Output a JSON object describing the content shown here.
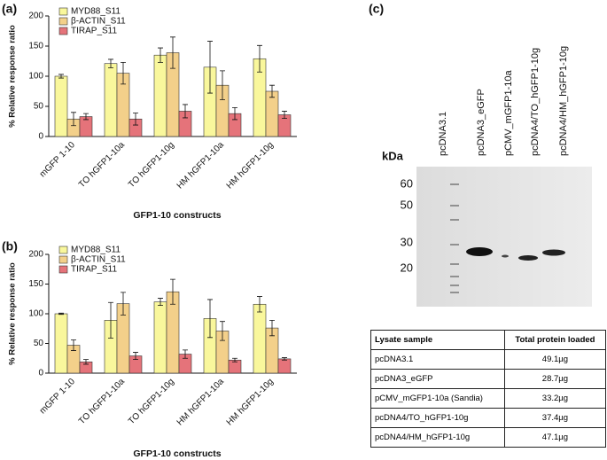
{
  "chart_data": [
    {
      "type": "bar",
      "label": "(a)",
      "ylabel": "% Relative response ratio",
      "xlabel": "GFP1-10 constructs",
      "categories": [
        "mGFP 1-10",
        "TO hGFP1-10a",
        "TO hGFP1-10g",
        "HM hGFP1-10a",
        "HM hGFP1-10g"
      ],
      "series": [
        {
          "name": "MYD88_S11",
          "color": "#f9f79c",
          "values": [
            100,
            121,
            135,
            115,
            129
          ],
          "errors": [
            3,
            7,
            12,
            43,
            22
          ]
        },
        {
          "name": "β-ACTIN_S11",
          "color": "#f3d08a",
          "values": [
            29,
            105,
            139,
            85,
            75
          ],
          "errors": [
            11,
            18,
            26,
            24,
            10
          ]
        },
        {
          "name": "TIRAP_S11",
          "color": "#e5737a",
          "values": [
            33,
            29,
            42,
            38,
            36
          ],
          "errors": [
            5,
            10,
            11,
            10,
            6
          ]
        }
      ],
      "ylim": [
        0,
        200
      ],
      "yticks": [
        0,
        50,
        100,
        150,
        200
      ],
      "legend": "upper left"
    },
    {
      "type": "bar",
      "label": "(b)",
      "ylabel": "% Relative response ratio",
      "xlabel": "GFP1-10 constructs",
      "categories": [
        "mGFP 1-10",
        "TO hGFP1-10a",
        "TO hGFP1-10g",
        "HM hGFP1-10a",
        "HM hGFP1-10g"
      ],
      "series": [
        {
          "name": "MYD88_S11",
          "color": "#f9f79c",
          "values": [
            100,
            89,
            120,
            92,
            116
          ],
          "errors": [
            1,
            30,
            6,
            32,
            13
          ]
        },
        {
          "name": "β-ACTIN_S11",
          "color": "#f3d08a",
          "values": [
            47,
            117,
            137,
            71,
            76
          ],
          "errors": [
            9,
            19,
            21,
            16,
            13
          ]
        },
        {
          "name": "TIRAP_S11",
          "color": "#e5737a",
          "values": [
            19,
            29,
            32,
            22,
            24
          ],
          "errors": [
            4,
            6,
            7,
            3,
            2
          ]
        }
      ],
      "ylim": [
        0,
        200
      ],
      "yticks": [
        0,
        50,
        100,
        150,
        200
      ],
      "legend": "upper left"
    }
  ],
  "blot": {
    "label": "(c)",
    "unit": "kDa",
    "lanes": [
      "pcDNA3.1",
      "pcDNA3_eGFP",
      "pCMV_mGFP1-10a",
      "pcDNA4/TO_hGFP1-10g",
      "pcDNA4/HM_hGFP1-10g"
    ],
    "markers": [
      "60",
      "50",
      "30",
      "20"
    ]
  },
  "table": {
    "header": [
      "Lysate sample",
      "Total protein loaded"
    ],
    "rows": [
      [
        "pcDNA3.1",
        "49.1µg"
      ],
      [
        "pcDNA3_eGFP",
        "28.7µg"
      ],
      [
        "pCMV_mGFP1-10a (Sandia)",
        "33.2µg"
      ],
      [
        "pcDNA4/TO_hGFP1-10g",
        "37.4µg"
      ],
      [
        "pcDNA4/HM_hGFP1-10g",
        "47.1µg"
      ]
    ]
  }
}
